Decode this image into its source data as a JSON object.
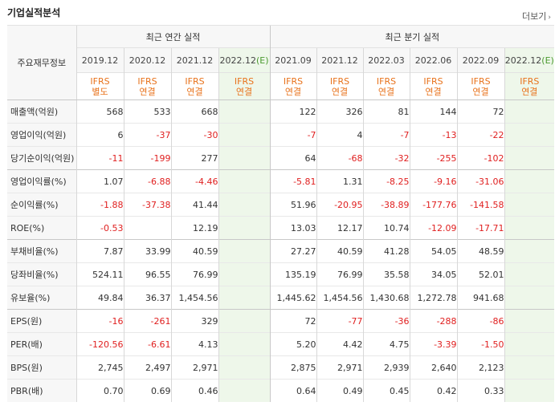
{
  "header": {
    "title": "기업실적분석",
    "more_label": "더보기"
  },
  "table": {
    "row_label_header": "주요재무정보",
    "group_annual": "최근 연간 실적",
    "group_quarterly": "최근 분기 실적",
    "years": [
      "2019.12",
      "2020.12",
      "2021.12",
      "2022.12",
      "(E)",
      "2021.09",
      "2021.12",
      "2022.03",
      "2022.06",
      "2022.09",
      "2022.12",
      "(E)"
    ],
    "col_years": [
      "2019.12",
      "2020.12",
      "2021.12",
      "2022.12",
      "2021.09",
      "2021.12",
      "2022.03",
      "2022.06",
      "2022.09",
      "2022.12"
    ],
    "estimate_marker": "(E)",
    "ifrs": [
      [
        "IFRS",
        "별도"
      ],
      [
        "IFRS",
        "연결"
      ],
      [
        "IFRS",
        "연결"
      ],
      [
        "IFRS",
        "연결"
      ],
      [
        "IFRS",
        "연결"
      ],
      [
        "IFRS",
        "연결"
      ],
      [
        "IFRS",
        "연결"
      ],
      [
        "IFRS",
        "연결"
      ],
      [
        "IFRS",
        "연결"
      ],
      [
        "IFRS",
        "연결"
      ]
    ],
    "rows": [
      {
        "label": "매출액(억원)",
        "values": [
          "568",
          "533",
          "668",
          "",
          "122",
          "326",
          "81",
          "144",
          "72",
          ""
        ]
      },
      {
        "label": "영업이익(억원)",
        "values": [
          "6",
          "-37",
          "-30",
          "",
          "-7",
          "4",
          "-7",
          "-13",
          "-22",
          ""
        ]
      },
      {
        "label": "당기순이익(억원)",
        "values": [
          "-11",
          "-199",
          "277",
          "",
          "64",
          "-68",
          "-32",
          "-255",
          "-102",
          ""
        ]
      },
      {
        "label": "영업이익률(%)",
        "values": [
          "1.07",
          "-6.88",
          "-4.46",
          "",
          "-5.81",
          "1.31",
          "-8.25",
          "-9.16",
          "-31.06",
          ""
        ]
      },
      {
        "label": "순이익률(%)",
        "values": [
          "-1.88",
          "-37.38",
          "41.44",
          "",
          "51.96",
          "-20.95",
          "-38.89",
          "-177.76",
          "-141.58",
          ""
        ]
      },
      {
        "label": "ROE(%)",
        "values": [
          "-0.53",
          "",
          "12.19",
          "",
          "13.03",
          "12.17",
          "10.74",
          "-12.09",
          "-17.71",
          ""
        ]
      },
      {
        "label": "부채비율(%)",
        "values": [
          "7.87",
          "33.99",
          "40.59",
          "",
          "27.27",
          "40.59",
          "41.28",
          "54.05",
          "48.59",
          ""
        ]
      },
      {
        "label": "당좌비율(%)",
        "values": [
          "524.11",
          "96.55",
          "76.99",
          "",
          "135.19",
          "76.99",
          "35.58",
          "34.05",
          "52.01",
          ""
        ]
      },
      {
        "label": "유보율(%)",
        "values": [
          "49.84",
          "36.37",
          "1,454.56",
          "",
          "1,445.62",
          "1,454.56",
          "1,430.68",
          "1,272.78",
          "941.68",
          ""
        ]
      },
      {
        "label": "EPS(원)",
        "values": [
          "-16",
          "-261",
          "329",
          "",
          "72",
          "-77",
          "-36",
          "-288",
          "-86",
          ""
        ]
      },
      {
        "label": "PER(배)",
        "values": [
          "-120.56",
          "-6.61",
          "4.13",
          "",
          "5.20",
          "4.42",
          "4.75",
          "-3.39",
          "-1.50",
          ""
        ]
      },
      {
        "label": "BPS(원)",
        "values": [
          "2,745",
          "2,497",
          "2,971",
          "",
          "2,875",
          "2,971",
          "2,939",
          "2,640",
          "2,123",
          ""
        ]
      },
      {
        "label": "PBR(배)",
        "values": [
          "0.70",
          "0.69",
          "0.46",
          "",
          "0.64",
          "0.49",
          "0.45",
          "0.42",
          "0.33",
          ""
        ]
      }
    ]
  },
  "colors": {
    "negative": "#e02020",
    "ifrs": "#e8721b",
    "estimate_bg": "#eef7ea",
    "estimate_text": "#4a9a2e"
  }
}
